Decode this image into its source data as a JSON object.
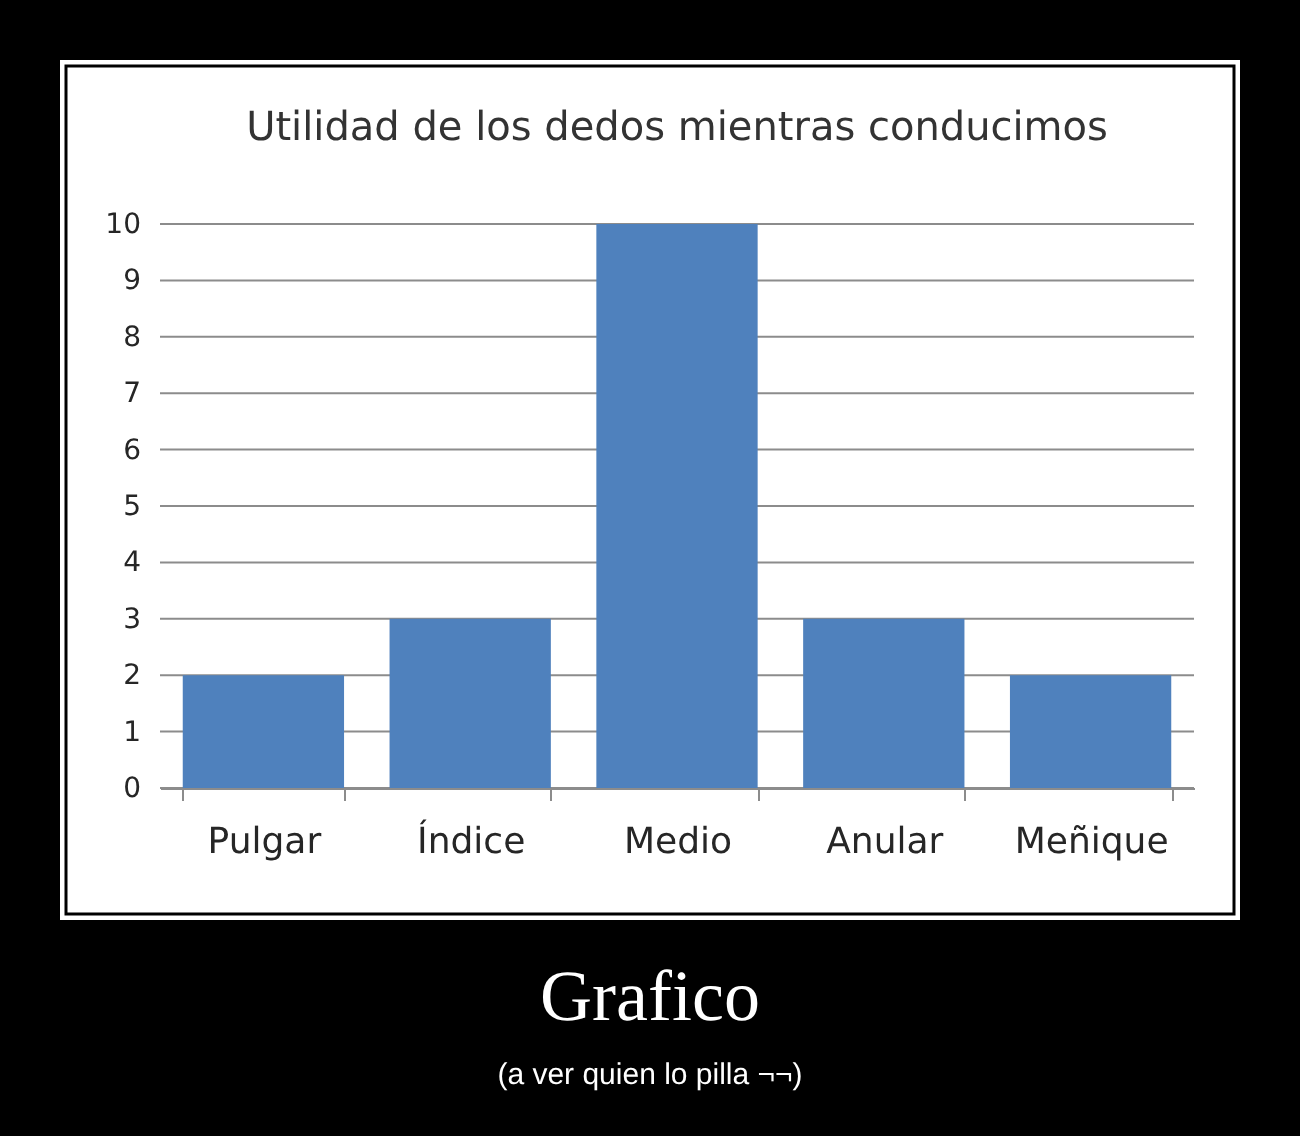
{
  "chart_data": {
    "type": "bar",
    "title": "Utilidad de los dedos mientras conducimos",
    "categories": [
      "Pulgar",
      "Índice",
      "Medio",
      "Anular",
      "Meñique"
    ],
    "values": [
      2,
      3,
      10,
      3,
      2
    ],
    "color": "#4f81bd",
    "ylim": [
      0,
      10
    ],
    "yticks": [
      0,
      1,
      2,
      3,
      4,
      5,
      6,
      7,
      8,
      9,
      10
    ],
    "grid": "y",
    "annotations": [
      "Grafico",
      "(a ver quien lo pilla ¬¬)"
    ]
  }
}
